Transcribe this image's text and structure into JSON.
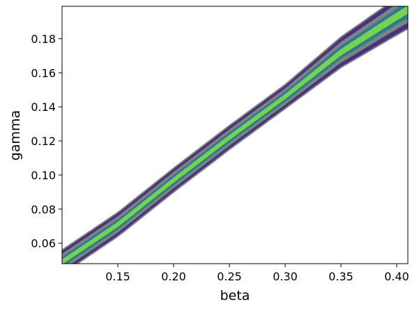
{
  "chart_data": {
    "type": "contour",
    "xlabel": "beta",
    "ylabel": "gamma",
    "xlim": [
      0.1,
      0.41
    ],
    "ylim": [
      0.048,
      0.199
    ],
    "x_ticks": [
      0.15,
      0.2,
      0.25,
      0.3,
      0.35,
      0.4
    ],
    "y_ticks": [
      0.06,
      0.08,
      0.1,
      0.12,
      0.14,
      0.16,
      0.18
    ],
    "x_tick_labels": [
      "0.15",
      "0.20",
      "0.25",
      "0.30",
      "0.35",
      "0.40"
    ],
    "y_tick_labels": [
      "0.06",
      "0.08",
      "0.10",
      "0.12",
      "0.14",
      "0.16",
      "0.18"
    ],
    "ridge": {
      "beta": [
        0.1,
        0.15,
        0.2,
        0.25,
        0.3,
        0.35,
        0.4,
        0.41
      ],
      "gamma": [
        0.049,
        0.071,
        0.097,
        0.122,
        0.146,
        0.172,
        0.193,
        0.197
      ]
    },
    "levels": [
      {
        "level": 1,
        "color": "#46327e",
        "half_width": 0.007
      },
      {
        "level": 2,
        "color": "#818181",
        "half_width": 0.0048
      },
      {
        "level": 3,
        "color": "#277f8e",
        "half_width": 0.003
      },
      {
        "level": 4,
        "color": "#7ad151",
        "half_width": 0.0015
      }
    ],
    "grid": false,
    "colors": {
      "outer": "#46327e",
      "edge": "#818181",
      "mid": "#277f8e",
      "core": "#7ad151"
    }
  }
}
